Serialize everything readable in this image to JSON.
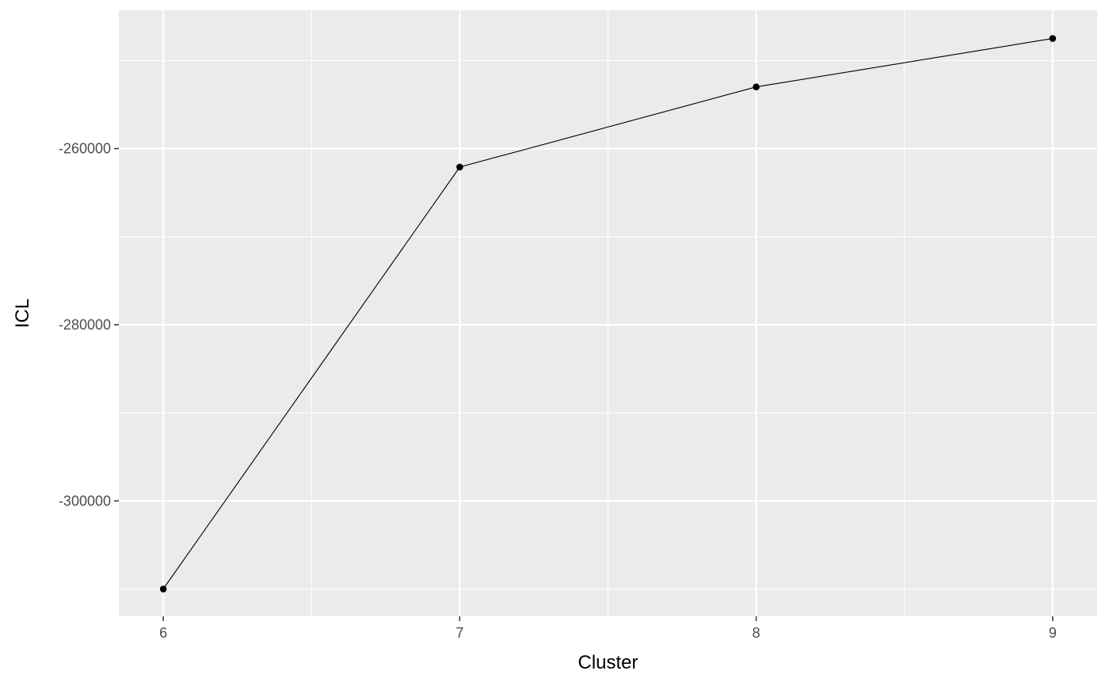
{
  "chart_data": {
    "type": "line",
    "title": "",
    "xlabel": "Cluster",
    "ylabel": "ICL",
    "x": [
      6,
      7,
      8,
      9
    ],
    "series": [
      {
        "values": [
          -310000,
          -262100,
          -253000,
          -247500
        ]
      }
    ],
    "x_ticks": [
      "6",
      "7",
      "8",
      "9"
    ],
    "y_ticks": [
      {
        "value": -300000,
        "label": "-300000"
      },
      {
        "value": -280000,
        "label": "-280000"
      },
      {
        "value": -260000,
        "label": "-260000"
      }
    ],
    "xlim": [
      5.85,
      9.15
    ],
    "ylim": [
      -313100,
      -244300
    ],
    "grid": true,
    "legend": "none",
    "colors": {
      "panel_background": "#ebebeb",
      "grid_line": "#ffffff",
      "series_line": "#000000",
      "point": "#000000",
      "tick_label": "#4d4d4d",
      "tick_mark": "#333333"
    }
  }
}
